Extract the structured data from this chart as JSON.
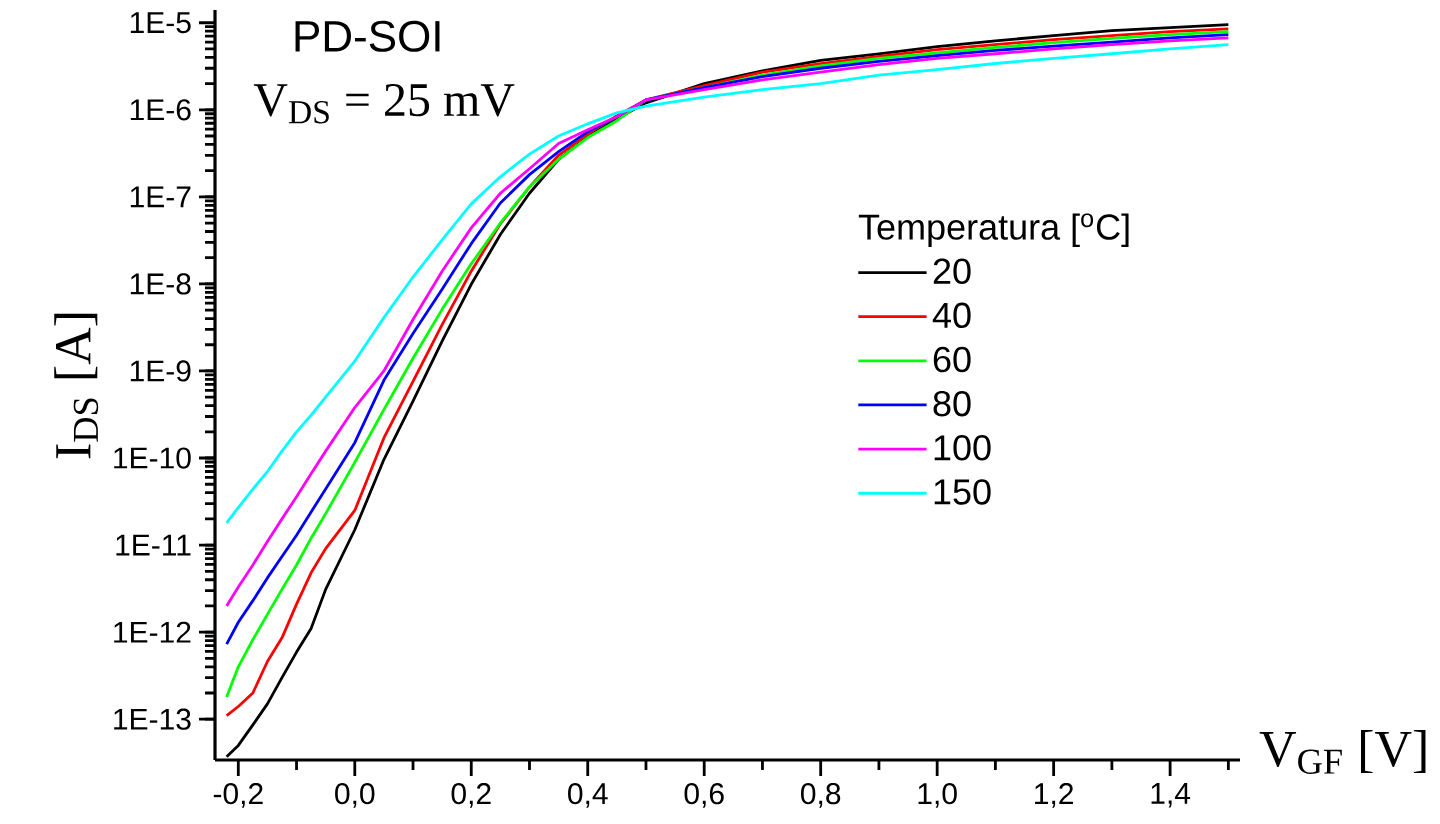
{
  "chart_data": {
    "type": "line",
    "xlabel": "V$_{GF}$ [V]",
    "ylabel": "I$_{DS}$ [A]",
    "legend_title": "Temperatura [$^{o}$C]",
    "annotations": [
      "PD-SOI",
      "V$_{DS}$ = 25 mV"
    ],
    "log": "y",
    "legend": "right",
    "xlim": [
      -0.24,
      1.52
    ],
    "ylim": [
      3.4e-14,
      1.4e-05
    ],
    "xticks": [
      {
        "value": -0.2,
        "label": "-0,2"
      },
      {
        "value": -0.1,
        "label": null
      },
      {
        "value": 0,
        "label": "0,0"
      },
      {
        "value": 0.1,
        "label": null
      },
      {
        "value": 0.2,
        "label": "0,2"
      },
      {
        "value": 0.3,
        "label": null
      },
      {
        "value": 0.4,
        "label": "0,4"
      },
      {
        "value": 0.5,
        "label": null
      },
      {
        "value": 0.6,
        "label": "0,6"
      },
      {
        "value": 0.7,
        "label": null
      },
      {
        "value": 0.8,
        "label": "0,8"
      },
      {
        "value": 0.9,
        "label": null
      },
      {
        "value": 1.0,
        "label": "1,0"
      },
      {
        "value": 1.1,
        "label": null
      },
      {
        "value": 1.2,
        "label": "1,2"
      },
      {
        "value": 1.3,
        "label": null
      },
      {
        "value": 1.4,
        "label": "1,4"
      },
      {
        "value": 1.5,
        "label": null
      }
    ],
    "yticks": [
      {
        "value": 1e-13,
        "label": "1E-13"
      },
      {
        "value": 1e-12,
        "label": "1E-12"
      },
      {
        "value": 1e-11,
        "label": "1E-11"
      },
      {
        "value": 1e-10,
        "label": "1E-10"
      },
      {
        "value": 1e-09,
        "label": "1E-9"
      },
      {
        "value": 1e-08,
        "label": "1E-8"
      },
      {
        "value": 1e-07,
        "label": "1E-7"
      },
      {
        "value": 1e-06,
        "label": "1E-6"
      },
      {
        "value": 1e-05,
        "label": "1E-5"
      }
    ],
    "x": [
      -0.22,
      -0.2,
      -0.175,
      -0.15,
      -0.125,
      -0.1,
      -0.075,
      -0.05,
      0,
      0.05,
      0.1,
      0.15,
      0.2,
      0.25,
      0.3,
      0.35,
      0.4,
      0.45,
      0.5,
      0.6,
      0.7,
      0.8,
      0.9,
      1.0,
      1.1,
      1.2,
      1.3,
      1.4,
      1.5
    ],
    "series": [
      {
        "name": "20",
        "color": "#000000",
        "values": [
          3.7e-14,
          5e-14,
          8.6e-14,
          1.5e-13,
          3e-13,
          5.9e-13,
          1.1e-12,
          3.1e-12,
          1.5e-11,
          9.6e-11,
          4.5e-10,
          2.2e-09,
          9.9e-09,
          3.7e-08,
          1.1e-07,
          2.7e-07,
          4.9e-07,
          7.9e-07,
          1.2e-06,
          2e-06,
          2.8e-06,
          3.7e-06,
          4.4e-06,
          5.3e-06,
          6.2e-06,
          7.1e-06,
          8.1e-06,
          8.8e-06,
          9.5e-06
        ]
      },
      {
        "name": "40",
        "color": "#ff0000",
        "values": [
          1.1e-13,
          1.4e-13,
          2e-13,
          4.6e-13,
          8.6e-13,
          2.1e-12,
          4.8e-12,
          9.1e-12,
          2.5e-11,
          1.7e-10,
          7.6e-10,
          3.4e-09,
          1.4e-08,
          4.9e-08,
          1.3e-07,
          3e-07,
          5.3e-07,
          8.5e-07,
          1.3e-06,
          1.9e-06,
          2.7e-06,
          3.4e-06,
          4.1e-06,
          4.9e-06,
          5.6e-06,
          6.4e-06,
          7.1e-06,
          7.9e-06,
          8.5e-06
        ]
      },
      {
        "name": "60",
        "color": "#00ff00",
        "values": [
          1.8e-13,
          4e-13,
          8.2e-13,
          1.6e-12,
          3.1e-12,
          5.9e-12,
          1.2e-11,
          2.3e-11,
          8.9e-11,
          3.6e-10,
          1.4e-09,
          5.1e-09,
          1.7e-08,
          5e-08,
          1.3e-07,
          2.7e-07,
          4.8e-07,
          7.5e-07,
          1.3e-06,
          1.8e-06,
          2.5e-06,
          3.2e-06,
          3.9e-06,
          4.5e-06,
          5.2e-06,
          5.9e-06,
          6.6e-06,
          7.3e-06,
          7.9e-06
        ]
      },
      {
        "name": "80",
        "color": "#0000ff",
        "values": [
          7.3e-13,
          1.3e-12,
          2.3e-12,
          4.2e-12,
          7.4e-12,
          1.3e-11,
          2.4e-11,
          4.4e-11,
          1.5e-10,
          7.8e-10,
          2.7e-09,
          8.7e-09,
          2.9e-08,
          8.5e-08,
          1.8e-07,
          3.3e-07,
          5.6e-07,
          8.3e-07,
          1.3e-06,
          1.8e-06,
          2.4e-06,
          3e-06,
          3.6e-06,
          4.2e-06,
          4.8e-06,
          5.4e-06,
          6e-06,
          6.7e-06,
          7.3e-06
        ]
      },
      {
        "name": "100",
        "color": "#ff00ff",
        "values": [
          2e-12,
          3.3e-12,
          5.9e-12,
          1.1e-11,
          2e-11,
          3.6e-11,
          6.6e-11,
          1.2e-10,
          3.8e-10,
          1e-09,
          3.9e-09,
          1.4e-08,
          4.4e-08,
          1.1e-07,
          2.1e-07,
          4.1e-07,
          5.9e-07,
          8.3e-07,
          1.3e-06,
          1.7e-06,
          2.2e-06,
          2.7e-06,
          3.3e-06,
          3.9e-06,
          4.4e-06,
          5e-06,
          5.6e-06,
          6.2e-06,
          6.7e-06
        ]
      },
      {
        "name": "150",
        "color": "#00ffff",
        "values": [
          1.8e-11,
          2.7e-11,
          4.4e-11,
          7e-11,
          1.2e-10,
          2e-10,
          3.1e-10,
          5e-10,
          1.3e-09,
          4.1e-09,
          1.2e-08,
          3.2e-08,
          8.3e-08,
          1.7e-07,
          3.1e-07,
          5e-07,
          6.9e-07,
          9.2e-07,
          1.1e-06,
          1.4e-06,
          1.7e-06,
          2e-06,
          2.5e-06,
          2.9e-06,
          3.4e-06,
          3.9e-06,
          4.4e-06,
          5e-06,
          5.6e-06
        ]
      }
    ]
  }
}
